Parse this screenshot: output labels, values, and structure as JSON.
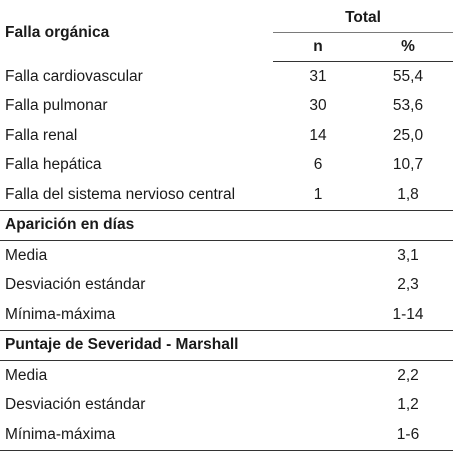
{
  "header": {
    "row_label": "Falla orgánica",
    "group": "Total",
    "col_n": "n",
    "col_pct": "%"
  },
  "organ_failure": [
    {
      "label": "Falla cardiovascular",
      "n": "31",
      "pct": "55,4"
    },
    {
      "label": "Falla pulmonar",
      "n": "30",
      "pct": "53,6"
    },
    {
      "label": "Falla renal",
      "n": "14",
      "pct": "25,0"
    },
    {
      "label": "Falla hepática",
      "n": "6",
      "pct": "10,7"
    },
    {
      "label": "Falla del sistema nervioso central",
      "n": "1",
      "pct": "1,8"
    }
  ],
  "onset": {
    "title": "Aparición en días",
    "rows": [
      {
        "label": "Media",
        "value": "3,1"
      },
      {
        "label": "Desviación estándar",
        "value": "2,3"
      },
      {
        "label": "Mínima-máxima",
        "value": "1-14"
      }
    ]
  },
  "marshall": {
    "title": "Puntaje de Severidad - Marshall",
    "rows": [
      {
        "label": "Media",
        "value": "2,2"
      },
      {
        "label": "Desviación estándar",
        "value": "1,2"
      },
      {
        "label": "Mínima-máxima",
        "value": "1-6"
      }
    ]
  }
}
